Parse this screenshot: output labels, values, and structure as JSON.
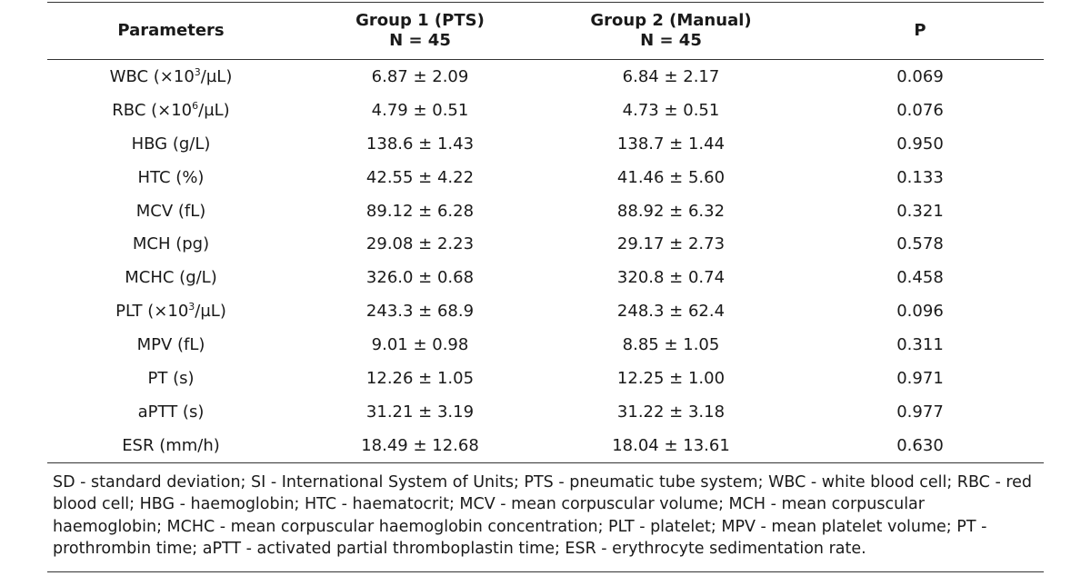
{
  "table": {
    "headers": [
      {
        "lines": [
          "Parameters"
        ]
      },
      {
        "lines": [
          "Group 1 (PTS)",
          "N = 45"
        ]
      },
      {
        "lines": [
          "Group 2 (Manual)",
          "N = 45"
        ]
      },
      {
        "lines": [
          "P"
        ]
      }
    ],
    "rows": [
      {
        "param": {
          "pre": "WBC (×10",
          "sup": "3",
          "post": "/µL)"
        },
        "g1": "6.87 ± 2.09",
        "g2": "6.84 ± 2.17",
        "p": "0.069"
      },
      {
        "param": {
          "pre": "RBC (×10",
          "sup": "6",
          "post": "/µL)"
        },
        "g1": "4.79 ± 0.51",
        "g2": "4.73 ± 0.51",
        "p": "0.076"
      },
      {
        "param": {
          "pre": "HBG (g/L)",
          "sup": "",
          "post": ""
        },
        "g1": "138.6 ± 1.43",
        "g2": "138.7 ± 1.44",
        "p": "0.950"
      },
      {
        "param": {
          "pre": "HTC (%)",
          "sup": "",
          "post": ""
        },
        "g1": "42.55 ± 4.22",
        "g2": "41.46 ± 5.60",
        "p": "0.133"
      },
      {
        "param": {
          "pre": "MCV (fL)",
          "sup": "",
          "post": ""
        },
        "g1": "89.12 ± 6.28",
        "g2": "88.92 ± 6.32",
        "p": "0.321"
      },
      {
        "param": {
          "pre": "MCH (pg)",
          "sup": "",
          "post": ""
        },
        "g1": "29.08 ± 2.23",
        "g2": "29.17 ± 2.73",
        "p": "0.578"
      },
      {
        "param": {
          "pre": "MCHC (g/L)",
          "sup": "",
          "post": ""
        },
        "g1": "326.0 ± 0.68",
        "g2": "320.8 ± 0.74",
        "p": "0.458"
      },
      {
        "param": {
          "pre": "PLT (×10",
          "sup": "3",
          "post": "/µL)"
        },
        "g1": "243.3 ± 68.9",
        "g2": "248.3 ± 62.4",
        "p": "0.096"
      },
      {
        "param": {
          "pre": "MPV (fL)",
          "sup": "",
          "post": ""
        },
        "g1": "9.01 ± 0.98",
        "g2": "8.85 ± 1.05",
        "p": "0.311"
      },
      {
        "param": {
          "pre": "PT (s)",
          "sup": "",
          "post": ""
        },
        "g1": "12.26 ± 1.05",
        "g2": "12.25 ± 1.00",
        "p": "0.971"
      },
      {
        "param": {
          "pre": "aPTT (s)",
          "sup": "",
          "post": ""
        },
        "g1": "31.21 ± 3.19",
        "g2": "31.22 ± 3.18",
        "p": "0.977"
      },
      {
        "param": {
          "pre": "ESR (mm/h)",
          "sup": "",
          "post": ""
        },
        "g1": "18.49 ± 12.68",
        "g2": "18.04 ± 13.61",
        "p": "0.630"
      }
    ]
  },
  "footnote": "SD - standard deviation; SI - International System of Units; PTS - pneumatic tube system; WBC - white blood cell; RBC - red blood cell; HBG - haemoglobin; HTC - haematocrit; MCV - mean corpuscular volume; MCH - mean corpuscular haemoglobin; MCHC - mean corpuscular haemoglobin concentration; PLT - platelet; MPV - mean platelet volume; PT - prothrombin time; aPTT - activated partial thromboplastin time; ESR - erythrocyte sedimentation rate."
}
